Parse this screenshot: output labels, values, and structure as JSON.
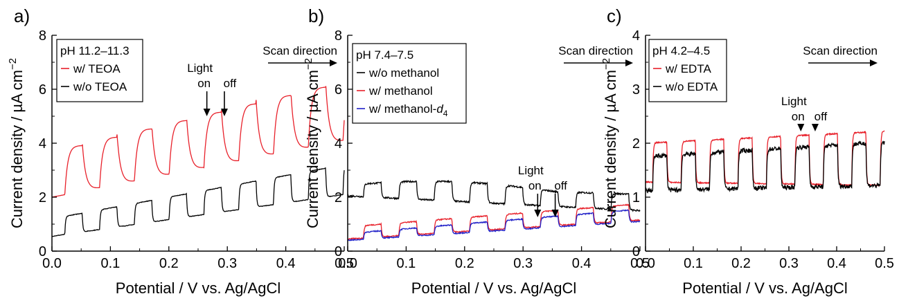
{
  "chart_data": [
    {
      "type": "line",
      "panel_label": "a)",
      "xlabel": "Potential / V vs. Ag/AgCl",
      "ylabel": "Current density / µA cm",
      "ylabel_sup": "−2",
      "xlim": [
        0,
        0.5
      ],
      "ylim": [
        0,
        8
      ],
      "xticks": [
        0.0,
        0.1,
        0.2,
        0.3,
        0.4,
        0.5
      ],
      "xtick_labels": [
        "0.0",
        "0.1",
        "0.2",
        "0.3",
        "0.4",
        "0.5"
      ],
      "yticks": [
        0,
        2,
        4,
        6,
        8
      ],
      "ytick_labels": [
        "0",
        "2",
        "4",
        "6",
        "8"
      ],
      "grid": false,
      "legend_title": "pH 11.2–11.3",
      "legend_position": "top-left",
      "annotations": {
        "scan_direction": "Scan direction",
        "light_label": "Light",
        "on_label": "on",
        "off_label": "off",
        "on_x": 0.265,
        "off_x": 0.295
      },
      "chop": {
        "start": 0.022,
        "period": 0.0595,
        "on_fraction": 0.5
      },
      "series": [
        {
          "name": "w/ TEOA",
          "color": "#e8202a",
          "style": "transient",
          "dark_start": 2.0,
          "dark_end": 4.1,
          "light_start": 3.8,
          "light_end": 6.4,
          "noise": 0
        },
        {
          "name": "w/o TEOA",
          "color": "#000000",
          "style": "square",
          "dark_start": 0.55,
          "dark_end": 2.1,
          "light_start": 1.2,
          "light_end": 3.2,
          "noise": 0.01
        }
      ]
    },
    {
      "type": "line",
      "panel_label": "b)",
      "xlabel": "Potential / V vs. Ag/AgCl",
      "ylabel": "Current density / µA cm",
      "ylabel_sup": "−2",
      "xlim": [
        0,
        0.5
      ],
      "ylim": [
        0,
        8
      ],
      "xticks": [
        0.0,
        0.1,
        0.2,
        0.3,
        0.4,
        0.5
      ],
      "xtick_labels": [
        "0.0",
        "0.1",
        "0.2",
        "0.3",
        "0.4",
        "0.5"
      ],
      "yticks": [
        0,
        2,
        4,
        6,
        8
      ],
      "ytick_labels": [
        "0",
        "2",
        "4",
        "6",
        "8"
      ],
      "grid": false,
      "legend_title": "pH 7.4–7.5",
      "legend_position": "top-left",
      "annotations": {
        "scan_direction": "Scan direction",
        "light_label": "Light",
        "on_label": "on",
        "off_label": "off",
        "on_x": 0.325,
        "off_x": 0.355
      },
      "chop": {
        "start": 0.027,
        "period": 0.0605,
        "on_fraction": 0.5
      },
      "series": [
        {
          "name": "w/o methanol",
          "color": "#000000",
          "style": "square",
          "dark_start": 2.05,
          "dark_end": 1.5,
          "light_start": 2.45,
          "light_end": 2.1,
          "bump": 0.25,
          "noise": 0.03
        },
        {
          "name": "w/ methanol",
          "color": "#e8202a",
          "style": "square",
          "dark_start": 0.45,
          "dark_end": 1.15,
          "light_start": 0.9,
          "light_end": 1.75,
          "noise": 0.02
        },
        {
          "name": "w/ methanol-",
          "name_sub": "d",
          "name_subscript": "4",
          "color": "#2020c8",
          "style": "square",
          "dark_start": 0.4,
          "dark_end": 1.1,
          "light_start": 0.65,
          "light_end": 1.55,
          "noise": 0.02
        }
      ]
    },
    {
      "type": "line",
      "panel_label": "c)",
      "xlabel": "Potential / V vs. Ag/AgCl",
      "ylabel": "Current density / µA cm",
      "ylabel_sup": "−2",
      "xlim": [
        0,
        0.5
      ],
      "ylim": [
        0,
        4
      ],
      "xticks": [
        0.0,
        0.1,
        0.2,
        0.3,
        0.4,
        0.5
      ],
      "xtick_labels": [
        "0.0",
        "0.1",
        "0.2",
        "0.3",
        "0.4",
        "0.5"
      ],
      "yticks": [
        0,
        1,
        2,
        3,
        4
      ],
      "ytick_labels": [
        "0",
        "1",
        "2",
        "3",
        "4"
      ],
      "grid": false,
      "legend_title": "pH 4.2–4.5",
      "legend_position": "top-left",
      "annotations": {
        "scan_direction": "Scan direction",
        "light_label": "Light",
        "on_label": "on",
        "off_label": "off",
        "on_x": 0.325,
        "off_x": 0.355
      },
      "chop": {
        "start": 0.015,
        "period": 0.0595,
        "on_fraction": 0.5
      },
      "series": [
        {
          "name": "w/ EDTA",
          "color": "#e8202a",
          "style": "square",
          "dark_start": 1.28,
          "dark_end": 1.22,
          "light_start": 2.0,
          "light_end": 2.22,
          "noise": 0.01
        },
        {
          "name": "w/o EDTA",
          "color": "#000000",
          "style": "square",
          "dark_start": 1.12,
          "dark_end": 1.22,
          "light_start": 1.75,
          "light_end": 2.02,
          "noise": 0.04
        }
      ]
    }
  ]
}
